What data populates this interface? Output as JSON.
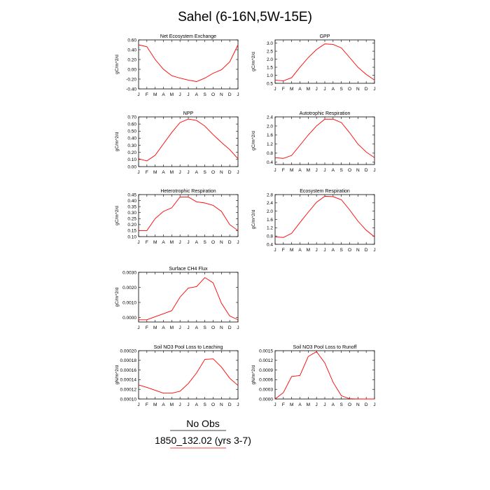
{
  "title": "Sahel (6-16N,5W-15E)",
  "legend": [
    {
      "label": "No Obs",
      "color": "#000000"
    },
    {
      "label": "1850_132.02 (yrs 3-7)",
      "color": "#ff0000"
    }
  ],
  "series_color": "#ff0000",
  "chart_data": [
    {
      "type": "line",
      "title": "Net Ecosystem Exchange",
      "ylabel": "gC/m^2/d",
      "x": [
        "J",
        "F",
        "M",
        "A",
        "M",
        "J",
        "J",
        "A",
        "S",
        "O",
        "N",
        "D",
        "J"
      ],
      "series": [
        {
          "values": [
            0.5,
            0.46,
            0.2,
            0.0,
            -0.13,
            -0.18,
            -0.22,
            -0.25,
            -0.18,
            -0.08,
            -0.01,
            0.15,
            0.5
          ]
        }
      ],
      "ylim": [
        -0.4,
        0.6
      ],
      "yticks": [
        "-0.40",
        "-0.20",
        "0.00",
        "0.20",
        "0.40",
        "0.60"
      ],
      "ytick_values": [
        -0.4,
        -0.2,
        0.0,
        0.2,
        0.4,
        0.6
      ]
    },
    {
      "type": "line",
      "title": "GPP",
      "ylabel": "gC/m^2/d",
      "x": [
        "J",
        "F",
        "M",
        "A",
        "M",
        "J",
        "J",
        "A",
        "S",
        "O",
        "N",
        "D",
        "J"
      ],
      "series": [
        {
          "values": [
            0.7,
            0.65,
            0.85,
            1.5,
            2.1,
            2.6,
            2.95,
            2.92,
            2.7,
            2.1,
            1.5,
            1.05,
            0.7
          ]
        }
      ],
      "ylim": [
        0.5,
        3.2
      ],
      "yticks": [
        "0.5",
        "1.0",
        "1.5",
        "2.0",
        "2.5",
        "3.0"
      ],
      "ytick_values": [
        0.5,
        1.0,
        1.5,
        2.0,
        2.5,
        3.0
      ]
    },
    {
      "type": "line",
      "title": "NPP",
      "ylabel": "gC/m^2/d",
      "x": [
        "J",
        "F",
        "M",
        "A",
        "M",
        "J",
        "J",
        "A",
        "S",
        "O",
        "N",
        "D",
        "J"
      ],
      "series": [
        {
          "values": [
            0.11,
            0.08,
            0.16,
            0.32,
            0.48,
            0.62,
            0.67,
            0.65,
            0.57,
            0.45,
            0.34,
            0.24,
            0.11
          ]
        }
      ],
      "ylim": [
        0.0,
        0.7
      ],
      "yticks": [
        "0.00",
        "0.10",
        "0.20",
        "0.30",
        "0.40",
        "0.50",
        "0.60",
        "0.70"
      ],
      "ytick_values": [
        0.0,
        0.1,
        0.2,
        0.3,
        0.4,
        0.5,
        0.6,
        0.7
      ]
    },
    {
      "type": "line",
      "title": "Autotrophic Respiration",
      "ylabel": "gC/m^2/d",
      "x": [
        "J",
        "F",
        "M",
        "A",
        "M",
        "J",
        "J",
        "A",
        "S",
        "O",
        "N",
        "D",
        "J"
      ],
      "series": [
        {
          "values": [
            0.6,
            0.57,
            0.7,
            1.15,
            1.6,
            2.0,
            2.3,
            2.3,
            2.15,
            1.7,
            1.2,
            0.85,
            0.6
          ]
        }
      ],
      "ylim": [
        0.3,
        2.4
      ],
      "yticks": [
        "0.4",
        "0.8",
        "1.2",
        "1.6",
        "2.0",
        "2.4"
      ],
      "ytick_values": [
        0.4,
        0.8,
        1.2,
        1.6,
        2.0,
        2.4
      ]
    },
    {
      "type": "line",
      "title": "Heterotrophic Respiration",
      "ylabel": "gC/m^2/d",
      "x": [
        "J",
        "F",
        "M",
        "A",
        "M",
        "J",
        "J",
        "A",
        "S",
        "O",
        "N",
        "D",
        "J"
      ],
      "series": [
        {
          "values": [
            0.15,
            0.15,
            0.25,
            0.31,
            0.34,
            0.43,
            0.43,
            0.39,
            0.38,
            0.36,
            0.31,
            0.2,
            0.15
          ]
        }
      ],
      "ylim": [
        0.1,
        0.45
      ],
      "yticks": [
        "0.10",
        "0.15",
        "0.20",
        "0.25",
        "0.30",
        "0.35",
        "0.40",
        "0.45"
      ],
      "ytick_values": [
        0.1,
        0.15,
        0.2,
        0.25,
        0.3,
        0.35,
        0.4,
        0.45
      ]
    },
    {
      "type": "line",
      "title": "Ecosystem Respiration",
      "ylabel": "gC/m^2/d",
      "x": [
        "J",
        "F",
        "M",
        "A",
        "M",
        "J",
        "J",
        "A",
        "S",
        "O",
        "N",
        "D",
        "J"
      ],
      "series": [
        {
          "values": [
            0.76,
            0.73,
            0.93,
            1.45,
            1.95,
            2.43,
            2.72,
            2.7,
            2.55,
            2.06,
            1.52,
            1.08,
            0.76
          ]
        }
      ],
      "ylim": [
        0.4,
        2.8
      ],
      "yticks": [
        "0.4",
        "0.8",
        "1.2",
        "1.6",
        "2.0",
        "2.4",
        "2.8"
      ],
      "ytick_values": [
        0.4,
        0.8,
        1.2,
        1.6,
        2.0,
        2.4,
        2.8
      ]
    },
    {
      "type": "line",
      "title": "Surface CH4 Flux",
      "ylabel": "gC/m^2/d",
      "x": [
        "J",
        "F",
        "M",
        "A",
        "M",
        "J",
        "J",
        "A",
        "S",
        "O",
        "N",
        "D",
        "J"
      ],
      "series": [
        {
          "values": [
            -0.00015,
            -0.00015,
            5e-05,
            0.00025,
            0.00045,
            0.00135,
            0.00195,
            0.00205,
            0.00265,
            0.0023,
            0.00095,
            0.0001,
            -0.00015
          ]
        }
      ],
      "ylim": [
        -0.0003,
        0.003
      ],
      "yticks": [
        "0.0000",
        "0.0010",
        "0.0020",
        "0.0030"
      ],
      "ytick_values": [
        0.0,
        0.001,
        0.002,
        0.003
      ]
    },
    {
      "type": "line",
      "title": "Soil NO3 Pool Loss to Leaching",
      "ylabel": "gN/m^2/d",
      "x": [
        "J",
        "F",
        "M",
        "A",
        "M",
        "J",
        "J",
        "A",
        "S",
        "O",
        "N",
        "D",
        "J"
      ],
      "series": [
        {
          "values": [
            0.000129,
            0.000124,
            0.000118,
            0.000112,
            0.000112,
            0.000116,
            0.000132,
            0.000154,
            0.000182,
            0.000183,
            0.000166,
            0.000143,
            0.000128
          ]
        }
      ],
      "ylim": [
        0.0001,
        0.0002
      ],
      "yticks": [
        "0.00010",
        "0.00012",
        "0.00014",
        "0.00016",
        "0.00018",
        "0.00020"
      ],
      "ytick_values": [
        0.0001,
        0.00012,
        0.00014,
        0.00016,
        0.00018,
        0.0002
      ]
    },
    {
      "type": "line",
      "title": "Soil NO3 Pool Loss to Runoff",
      "ylabel": "gN/m^2/d",
      "x": [
        "J",
        "F",
        "M",
        "A",
        "M",
        "J",
        "J",
        "A",
        "S",
        "O",
        "N",
        "D",
        "J"
      ],
      "series": [
        {
          "values": [
            0.0,
            0.0002,
            0.0007,
            0.00073,
            0.00132,
            0.00147,
            0.00112,
            0.00052,
            0.0001,
            1e-05,
            0.0,
            0.0,
            0.0
          ]
        }
      ],
      "ylim": [
        0.0,
        0.0015
      ],
      "yticks": [
        "0.0000",
        "0.0003",
        "0.0006",
        "0.0009",
        "0.0012",
        "0.0015"
      ],
      "ytick_values": [
        0.0,
        0.0003,
        0.0006,
        0.0009,
        0.0012,
        0.0015
      ]
    }
  ]
}
